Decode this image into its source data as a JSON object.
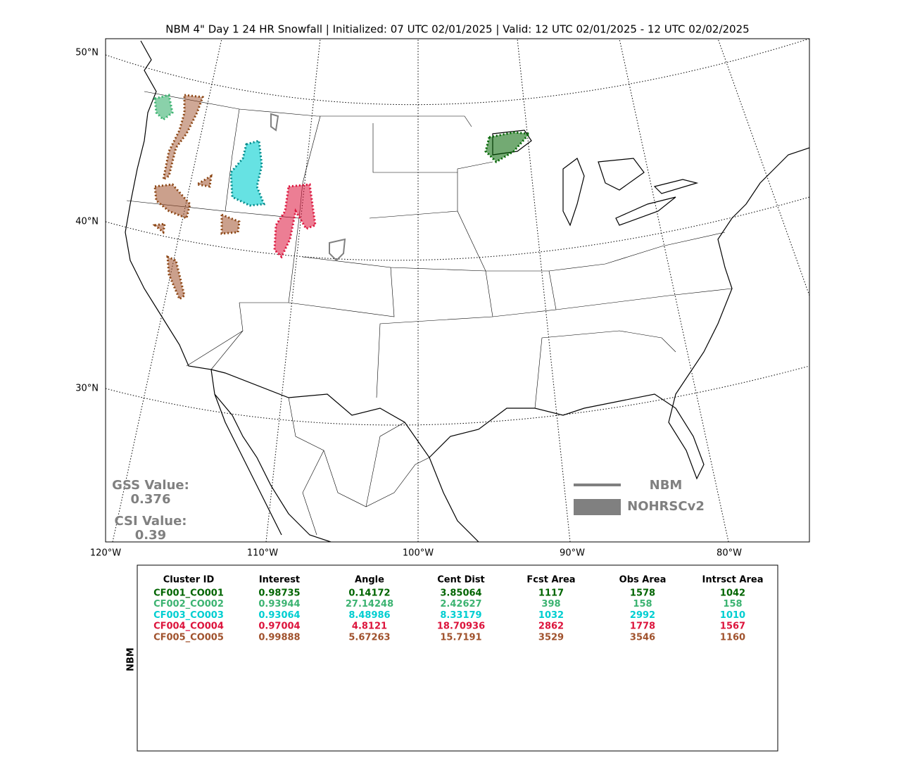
{
  "title": "NBM 4\" Day 1 24 HR Snowfall | Initialized: 07 UTC 02/01/2025 | Valid: 12 UTC 02/01/2025 - 12 UTC 02/02/2025",
  "map": {
    "lat_labels": [
      "50°N",
      "40°N",
      "30°N"
    ],
    "lon_labels": [
      "120°W",
      "110°W",
      "100°W",
      "90°W",
      "80°W"
    ],
    "gss_label": "GSS Value:",
    "gss_value": 0.376,
    "csi_label": "CSI Value:",
    "csi_value": 0.39,
    "legend": [
      "NBM",
      "NOHRSCv2"
    ]
  },
  "table": {
    "side_label": "NBM",
    "headers": [
      "Cluster ID",
      "Interest",
      "Angle",
      "Cent Dist",
      "Fcst Area",
      "Obs Area",
      "Intrsct Area"
    ],
    "rows": [
      {
        "color": "#006400",
        "cells": [
          "CF001_CO001",
          0.98735,
          0.14172,
          3.85064,
          1117,
          1578,
          1042
        ]
      },
      {
        "color": "#3cb371",
        "cells": [
          "CF002_CO002",
          0.93944,
          27.14248,
          2.42627,
          398,
          158,
          158
        ]
      },
      {
        "color": "#00ced1",
        "cells": [
          "CF003_CO003",
          0.93064,
          8.48986,
          8.33179,
          1032,
          2992,
          1010
        ]
      },
      {
        "color": "#dc143c",
        "cells": [
          "CF004_CO004",
          0.97004,
          4.8121,
          18.70936,
          2862,
          1778,
          1567
        ]
      },
      {
        "color": "#a0522d",
        "cells": [
          "CF005_CO005",
          0.99888,
          5.67263,
          15.7191,
          3529,
          3546,
          1160
        ]
      }
    ]
  }
}
